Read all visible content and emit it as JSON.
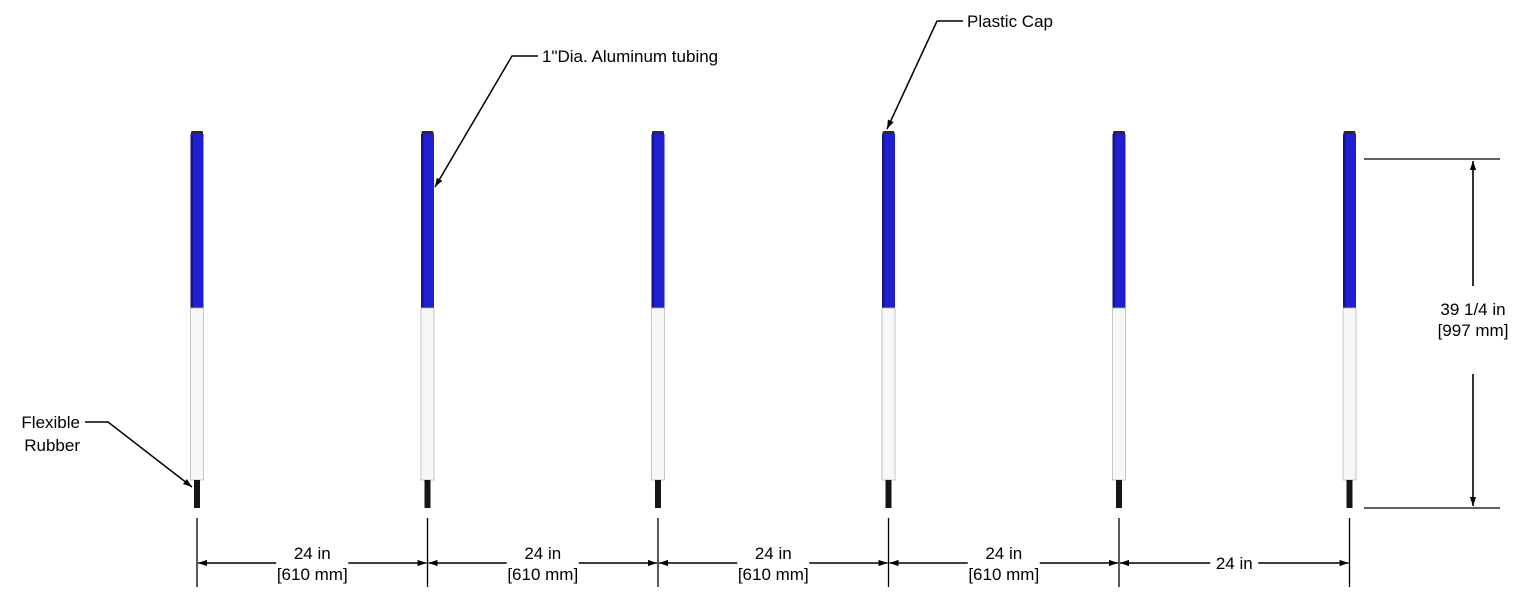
{
  "colors": {
    "blue": "#1f1fd0",
    "blue_dark": "#13138e",
    "white_tube": "#f7f7f7",
    "tube_outline": "#b8b8b8",
    "rubber": "#151515",
    "line": "#000000"
  },
  "posts": {
    "count": 6
  },
  "callouts": {
    "tubing": "1\"Dia. Aluminum tubing",
    "cap": "Plastic Cap",
    "rubber_line1": "Flexible",
    "rubber_line2": "Rubber"
  },
  "height_dim": {
    "line1": "39 1/4 in",
    "line2": "[997 mm]"
  },
  "spacing_dims": [
    {
      "line1": "24 in",
      "line2": "[610 mm]"
    },
    {
      "line1": "24 in",
      "line2": "[610 mm]"
    },
    {
      "line1": "24 in",
      "line2": "[610 mm]"
    },
    {
      "line1": "24 in",
      "line2": "[610 mm]"
    },
    {
      "line1": "24 in",
      "line2": ""
    }
  ]
}
